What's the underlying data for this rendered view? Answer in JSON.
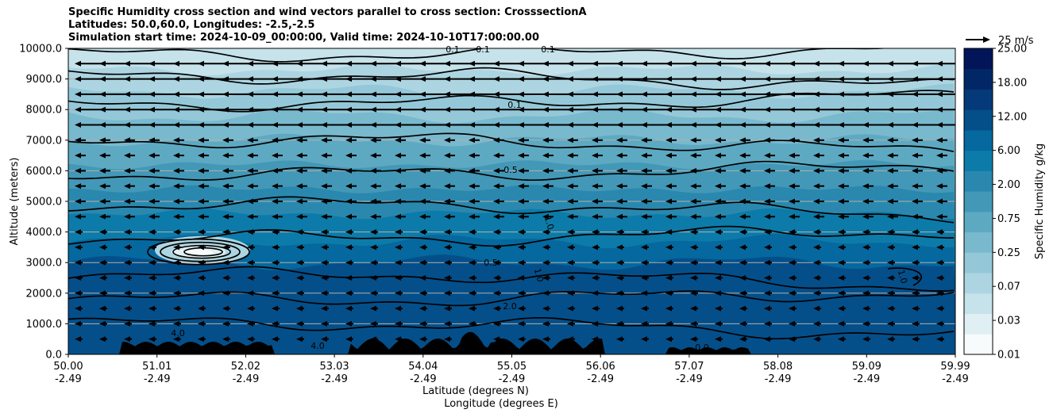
{
  "chart_data": {
    "type": "heatmap",
    "title_lines": [
      "Specific Humidity cross section and wind vectors parallel to cross section: CrosssectionA",
      "Latitudes: 50.0,60.0, Longitudes: -2.5,-2.5",
      "Simulation start time: 2024-10-09_00:00:00, Valid time: 2024-10-10T17:00:00.00"
    ],
    "ylabel": "Altitude (meters)",
    "xlabel_lat": "Latitude (degrees N)",
    "xlabel_lon": "Longitude (degrees E)",
    "ylim": [
      0,
      10000
    ],
    "yticks": [
      "0.0",
      "1000.0",
      "2000.0",
      "3000.0",
      "4000.0",
      "5000.0",
      "6000.0",
      "7000.0",
      "8000.0",
      "9000.0",
      "10000.0"
    ],
    "xticks_lat": [
      "50.00",
      "51.01",
      "52.02",
      "53.03",
      "54.04",
      "55.05",
      "56.06",
      "57.07",
      "58.08",
      "59.09",
      "59.99"
    ],
    "xticks_lon": [
      "-2.49",
      "-2.49",
      "-2.49",
      "-2.49",
      "-2.49",
      "-2.49",
      "-2.49",
      "-2.49",
      "-2.49",
      "-2.49",
      "-2.49"
    ],
    "grid": "horizontal",
    "colorbar_label": "Specific Humidity g/kg",
    "colorbar_ticks": [
      "0.01",
      "0.03",
      "0.07",
      "0.25",
      "0.75",
      "2.00",
      "6.00",
      "12.00",
      "18.00",
      "25.00"
    ],
    "quiver_key": "25 m/s",
    "contour_labels": [
      "0.1",
      "0.1",
      "0.1",
      "0.1",
      "0.5",
      "1.0",
      "0.5",
      "1.0",
      "2.0",
      "1.0",
      "4.0",
      "4.0",
      "0.0"
    ],
    "humidity_layers": [
      {
        "altitude_top": 10000,
        "value": 0.03
      },
      {
        "altitude_top": 9000,
        "value": 0.07
      },
      {
        "altitude_top": 7500,
        "value": 0.1
      },
      {
        "altitude_top": 6000,
        "value": 0.25
      },
      {
        "altitude_top": 5000,
        "value": 0.5
      },
      {
        "altitude_top": 4000,
        "value": 0.75
      },
      {
        "altitude_top": 3000,
        "value": 1.0
      },
      {
        "altitude_top": 2000,
        "value": 2.0
      },
      {
        "altitude_top": 1000,
        "value": 4.0
      }
    ],
    "wind_direction": "southward (arrows point toward decreasing latitude)",
    "wind_upper_speed_ms": 25,
    "wind_lower_speed_ms": 10
  },
  "colors": {
    "cmap": [
      "#f7fbfc",
      "#e0eff3",
      "#c6e2ea",
      "#add5e1",
      "#94c8d8",
      "#79b9cd",
      "#5ea9c2",
      "#4398b7",
      "#2a88ae",
      "#0c7ba9",
      "#05689e",
      "#044f8a",
      "#033a77",
      "#022767",
      "#011558"
    ],
    "contour": "#000000",
    "grid": "#b0b0b0",
    "terrain": "#000000"
  }
}
